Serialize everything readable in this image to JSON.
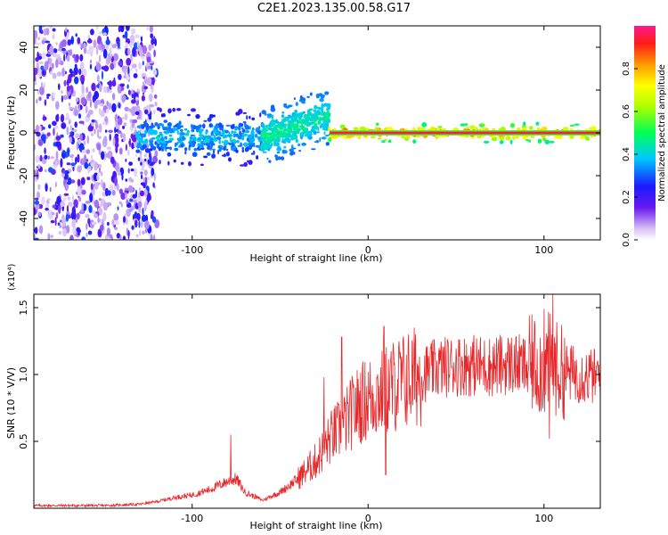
{
  "title": "C2E1.2023.135.00.58.G17",
  "chart_data": [
    {
      "type": "heatmap",
      "xlabel": "Height of straight line (km)",
      "ylabel": "Frequency (Hz)",
      "xlim": [
        -190,
        132
      ],
      "ylim": [
        -50,
        50
      ],
      "xticks": [
        -100,
        0,
        100
      ],
      "yticks": [
        -40,
        -20,
        0,
        20,
        40
      ],
      "colorbar": {
        "label": "Normalized spectral amplitude",
        "range": [
          0.0,
          1.0
        ],
        "ticks": [
          0.0,
          0.2,
          0.4,
          0.6,
          0.8
        ]
      },
      "regions": [
        {
          "x": [
            -190,
            -120
          ],
          "freq_spread": [
            -50,
            50
          ],
          "amplitude": [
            0.05,
            0.3
          ]
        },
        {
          "x": [
            -132,
            -60
          ],
          "freq_center": [
            -2,
            -2
          ],
          "freq_width": 6,
          "amplitude": [
            0.2,
            0.45
          ]
        },
        {
          "x": [
            -60,
            -22
          ],
          "freq_center": [
            -2,
            8
          ],
          "freq_width": 6,
          "amplitude": [
            0.3,
            0.5
          ]
        },
        {
          "x": [
            -22,
            132
          ],
          "freq_center": [
            0,
            0
          ],
          "freq_width": 2,
          "amplitude": [
            0.45,
            1.0
          ]
        }
      ]
    },
    {
      "type": "line",
      "xlabel": "Height of straight line (km)",
      "ylabel": "SNR (10 * V/V)",
      "yscale_label": "(x10⁴)",
      "xlim": [
        -190,
        132
      ],
      "ylim": [
        0,
        1.6
      ],
      "xticks": [
        -100,
        0,
        100
      ],
      "yticks": [
        0.5,
        1.0,
        1.5
      ],
      "series": [
        {
          "color": "#e8272a",
          "x": [
            -190,
            -170,
            -150,
            -130,
            -120,
            -110,
            -100,
            -90,
            -80,
            -75,
            -70,
            -60,
            -50,
            -40,
            -30,
            -25,
            -20,
            -15,
            -10,
            -5,
            0,
            5,
            10,
            15,
            20,
            30,
            40,
            50,
            60,
            70,
            80,
            90,
            95,
            100,
            103,
            105,
            110,
            120,
            132
          ],
          "y": [
            0.02,
            0.02,
            0.02,
            0.03,
            0.05,
            0.08,
            0.1,
            0.14,
            0.2,
            0.22,
            0.12,
            0.06,
            0.12,
            0.22,
            0.35,
            0.45,
            0.55,
            0.6,
            0.7,
            0.78,
            0.82,
            0.85,
            0.88,
            0.92,
            0.95,
            1.0,
            1.05,
            1.07,
            1.07,
            1.06,
            1.08,
            1.06,
            1.08,
            1.04,
            1.1,
            1.06,
            1.02,
            1.0,
            0.98
          ]
        }
      ],
      "spikes": [
        {
          "x": -78,
          "y": 0.55
        },
        {
          "x": -15,
          "y": 1.28
        },
        {
          "x": -25,
          "y": 0.98
        },
        {
          "x": 9,
          "y": 1.36
        },
        {
          "x": 10,
          "y": 0.25
        },
        {
          "x": 100,
          "y": 1.49
        },
        {
          "x": 103,
          "y": 0.52
        },
        {
          "x": 105,
          "y": 1.6
        }
      ]
    }
  ]
}
